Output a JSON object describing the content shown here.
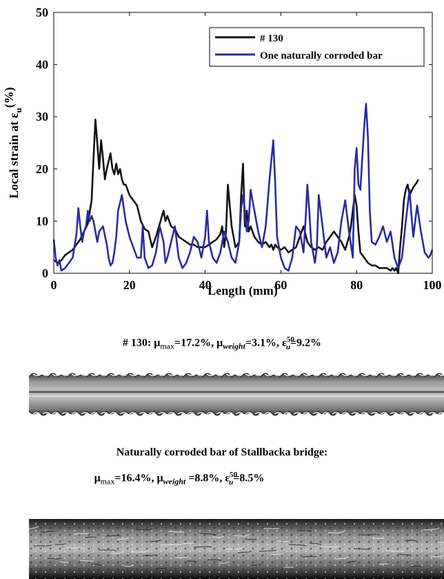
{
  "chart_data": {
    "type": "line",
    "xlabel": "Length (mm)",
    "ylabel": "Local strain at ε",
    "ylabel_sub": "u",
    "ylabel_unit": "(%)",
    "xlim": [
      0,
      100
    ],
    "ylim": [
      0,
      50
    ],
    "xticks": [
      0,
      20,
      40,
      60,
      80,
      100
    ],
    "yticks": [
      0,
      10,
      20,
      30,
      40,
      50
    ],
    "grid": false,
    "legend_position": "top-right",
    "series": [
      {
        "name": "# 130",
        "color": "#111111",
        "x": [
          0,
          0.5,
          1,
          2,
          3,
          4,
          5,
          6,
          7,
          8,
          9,
          10,
          10.5,
          11,
          11.5,
          12,
          12.5,
          13,
          13.5,
          14,
          15,
          15.5,
          16,
          16.5,
          17,
          17.5,
          18,
          18.5,
          19,
          20,
          21,
          22,
          23,
          24,
          25,
          26,
          27,
          28,
          29,
          29.5,
          30,
          31,
          32,
          33,
          34,
          35,
          36,
          37,
          38,
          39,
          40,
          41,
          42,
          43,
          44,
          44.5,
          45,
          45.5,
          46,
          47,
          48,
          49,
          49.5,
          50,
          50.5,
          51,
          51.5,
          52,
          53,
          54,
          55,
          56,
          57,
          57.5,
          58,
          58.5,
          59,
          60,
          61,
          62,
          63,
          64,
          65,
          66,
          67,
          68,
          69,
          70,
          71,
          72,
          73,
          74,
          75,
          76,
          77,
          78,
          78.5,
          79,
          79.5,
          80,
          80.5,
          81,
          82,
          83,
          84,
          85,
          86,
          87,
          88,
          89,
          89.5,
          90,
          90.5,
          91,
          91.5,
          92,
          92.5,
          93,
          93.5,
          94,
          95,
          96,
          96.3
        ],
        "y": [
          2.5,
          2.3,
          2,
          2.5,
          3.5,
          4,
          4.5,
          5.5,
          6.5,
          8,
          9.5,
          14,
          22,
          29.5,
          25,
          20,
          25.5,
          22,
          18,
          20,
          23,
          20,
          19,
          21,
          19,
          20,
          18,
          17,
          17,
          15,
          14,
          13,
          10,
          8.5,
          8,
          5,
          7,
          9.5,
          12,
          10,
          11,
          9,
          8.5,
          7,
          6.5,
          6,
          5.5,
          5.5,
          5,
          5,
          5,
          5.5,
          6,
          6.5,
          7.5,
          9,
          5,
          8,
          17,
          9,
          5,
          6,
          15,
          21,
          9,
          12,
          8,
          9,
          7,
          6,
          5.5,
          6,
          5,
          5.5,
          4.5,
          5.5,
          5,
          4.5,
          5,
          4,
          4.5,
          5,
          7,
          9,
          6,
          5,
          4.5,
          5,
          4.5,
          6,
          7,
          8,
          7,
          6,
          4.5,
          7,
          9,
          12,
          15,
          13,
          8,
          4,
          3,
          2,
          1.5,
          1.5,
          1,
          1,
          1,
          0.5,
          1,
          0.5,
          1,
          0,
          5,
          9,
          14,
          16,
          17,
          15,
          16.5,
          17.5,
          18
        ]
      },
      {
        "name": "One naturally corroded bar",
        "color": "#2a2aa0",
        "x": [
          0,
          0.5,
          1,
          1.5,
          2,
          3,
          4,
          5,
          6,
          6.5,
          7,
          7.5,
          8,
          8.5,
          9,
          9.5,
          10,
          10.5,
          11,
          11.5,
          12,
          13,
          14,
          14.5,
          15,
          15.5,
          16,
          16.5,
          17,
          18,
          19,
          20,
          21,
          22,
          23,
          23.5,
          24,
          25,
          26,
          27,
          28,
          29,
          29.5,
          30,
          31,
          32,
          33,
          34,
          35,
          36,
          37,
          38,
          39,
          40,
          40.5,
          41,
          42,
          43,
          44,
          45,
          46,
          47,
          48,
          49,
          49.5,
          50,
          50.5,
          51,
          51.5,
          52,
          53,
          54,
          55,
          56,
          57,
          58,
          58.5,
          59,
          60,
          61,
          62,
          63,
          64,
          65,
          66,
          66.5,
          67,
          67.5,
          68,
          69,
          69.5,
          70,
          71,
          72,
          73,
          74,
          75,
          76,
          77,
          78,
          79,
          79.5,
          80,
          80.5,
          81,
          82,
          82.5,
          83,
          83.5,
          84,
          85,
          86,
          87,
          88,
          89,
          90,
          91,
          92,
          93,
          94,
          94.5,
          95,
          96,
          97,
          98,
          99,
          99.5,
          100
        ],
        "y": [
          6.5,
          3,
          1.5,
          2.5,
          0.5,
          1,
          2,
          3,
          7.5,
          12.5,
          9,
          6,
          8,
          9,
          12,
          10,
          11,
          10,
          8,
          6,
          8,
          9,
          5.5,
          3,
          1.5,
          2,
          4,
          7,
          12,
          15,
          10,
          7,
          5,
          3,
          3,
          9,
          3,
          1,
          1.5,
          4,
          9,
          6,
          2,
          3,
          6,
          9,
          3,
          1,
          2,
          4,
          7,
          6,
          3,
          7,
          12,
          6,
          3,
          2,
          4,
          8,
          6,
          3,
          2,
          6,
          12.5,
          15,
          12,
          8,
          10,
          16,
          12,
          8,
          5,
          9,
          18,
          25.5,
          17,
          7,
          3,
          1,
          0.5,
          3,
          9,
          8,
          4,
          10,
          17,
          12,
          6,
          2,
          5,
          15,
          9,
          3,
          5,
          2,
          4,
          10,
          14,
          8,
          3,
          20,
          24,
          17,
          16,
          28,
          32.5,
          26,
          12,
          6,
          5.5,
          7,
          9,
          6,
          8,
          3,
          1,
          3,
          10,
          16,
          11,
          7,
          13,
          8,
          4,
          3,
          3.5,
          4.5
        ]
      }
    ]
  },
  "caption1": {
    "prefix": "# 130:  μ",
    "sub_max": "max",
    "val_max": "=17.2%,    μ",
    "sub_weight": "weight",
    "val_weight": "=3.1%,  ε",
    "sup_50": "50",
    "sub_u": "u",
    "val_eps": "=9.2%"
  },
  "caption2": {
    "line1": "Naturally corroded bar of Stallbacka bridge:",
    "prefix": "μ",
    "sub_max": "max",
    "val_max": "=16.4%,  μ",
    "sub_weight": "weight",
    "val_weight": " =8.8%,  ε",
    "sup_50": "50",
    "sub_u": "u",
    "val_eps": "=8.5%"
  }
}
